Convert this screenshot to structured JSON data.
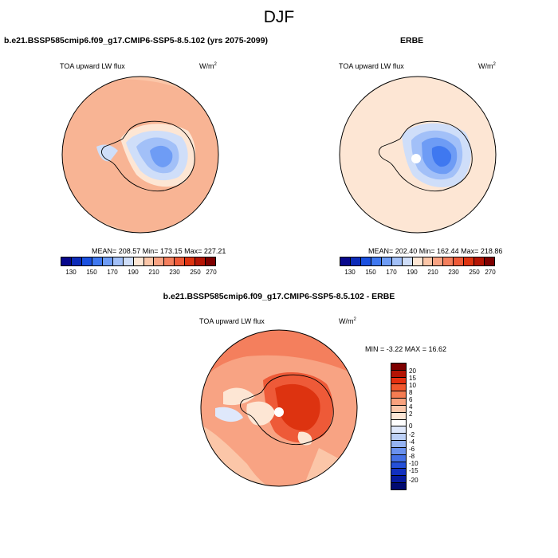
{
  "title": "DJF",
  "panel1": {
    "case_title": "b.e21.BSSP585cmip6.f09_g17.CMIP6-SSP5-8.5.102 (yrs 2075-2099)",
    "variable": "TOA upward LW flux",
    "units": "W/m",
    "units_sup": "2",
    "stats": "MEAN= 208.57  Min= 173.15  Max= 227.21"
  },
  "panel2": {
    "case_title": "ERBE",
    "variable": "TOA upward LW flux",
    "units": "W/m",
    "units_sup": "2",
    "stats": "MEAN= 202.40  Min= 162.44  Max= 218.86"
  },
  "panel3": {
    "case_title": "b.e21.BSSP585cmip6.f09_g17.CMIP6-SSP5-8.5.102 - ERBE",
    "variable": "TOA upward LW flux",
    "units": "W/m",
    "units_sup": "2",
    "stats": "MIN =  -3.22 MAX =  16.62"
  },
  "colorbar_top": {
    "colors": [
      "#08088c",
      "#0c2bb8",
      "#1a50e0",
      "#3f78f0",
      "#6e9cf5",
      "#a2c0f8",
      "#cfdef9",
      "#fde6d4",
      "#fbc6a8",
      "#f8a383",
      "#f47f5d",
      "#ee5a38",
      "#dd3310",
      "#b41404",
      "#7e0000"
    ],
    "labels": [
      "130",
      "150",
      "170",
      "190",
      "210",
      "230",
      "250",
      "270"
    ]
  },
  "colorbar_diff": {
    "colors": [
      "#7e0000",
      "#b41404",
      "#e63010",
      "#f1582e",
      "#f57c52",
      "#f8a27e",
      "#fbc7ab",
      "#fde6d6",
      "#ffffff",
      "#dfe8fb",
      "#bcd0f7",
      "#95b3f2",
      "#6a91ee",
      "#4470e6",
      "#2550d8",
      "#1230c0",
      "#061a9e",
      "#000a70"
    ],
    "labels": [
      "20",
      "15",
      "10",
      "8",
      "6",
      "4",
      "2",
      "0",
      "-2",
      "-4",
      "-6",
      "-8",
      "-10",
      "-15",
      "-20"
    ]
  }
}
